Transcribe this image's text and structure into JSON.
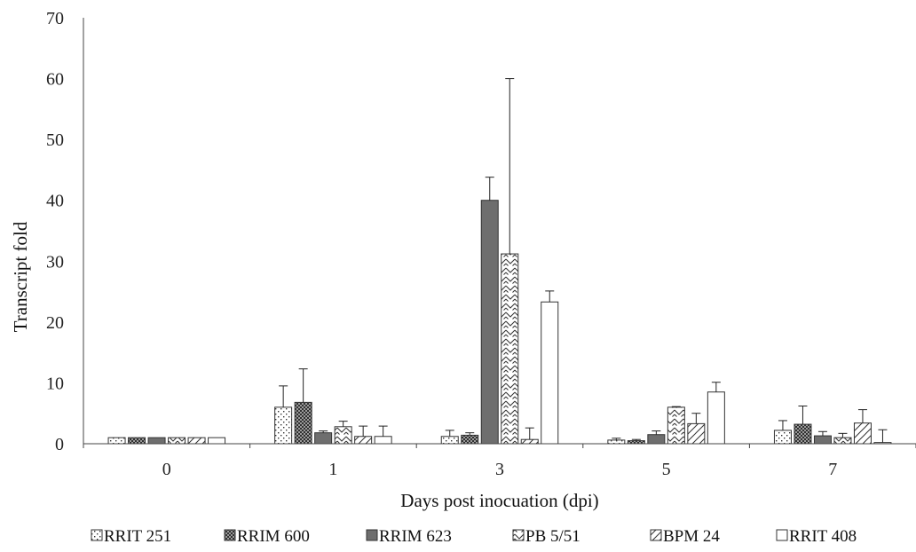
{
  "chart_data": {
    "type": "bar",
    "xlabel": "Days post inocuation (dpi)",
    "ylabel": "Transcript fold",
    "ylim": [
      0,
      70
    ],
    "yticks": [
      "0",
      "10",
      "20",
      "30",
      "40",
      "50",
      "60",
      "70"
    ],
    "categories": [
      "0",
      "1",
      "3",
      "5",
      "7"
    ],
    "grid": false,
    "legend_position": "bottom",
    "error_bars": "upper",
    "series": [
      {
        "name": "RRIT 251",
        "pattern": "dots",
        "values": [
          1.0,
          6.0,
          1.2,
          0.6,
          2.2
        ],
        "errors": [
          0.0,
          3.5,
          1.0,
          0.3,
          1.6
        ]
      },
      {
        "name": "RRIM 600",
        "pattern": "dense-grid",
        "values": [
          1.0,
          6.8,
          1.4,
          0.5,
          3.2
        ],
        "errors": [
          0.0,
          5.5,
          0.4,
          0.2,
          3.0
        ]
      },
      {
        "name": "RRIM 623",
        "pattern": "solid-gray",
        "values": [
          1.0,
          1.8,
          40.0,
          1.5,
          1.3
        ],
        "errors": [
          0.0,
          0.3,
          3.8,
          0.6,
          0.7
        ]
      },
      {
        "name": "PB 5/51",
        "pattern": "zigzag",
        "values": [
          1.0,
          2.8,
          31.2,
          6.0,
          1.0
        ],
        "errors": [
          0.0,
          0.9,
          28.8,
          0.1,
          0.7
        ]
      },
      {
        "name": "BPM 24",
        "pattern": "diagonal",
        "values": [
          1.0,
          1.2,
          0.7,
          3.3,
          3.4
        ],
        "errors": [
          0.0,
          1.7,
          1.9,
          1.7,
          2.2
        ]
      },
      {
        "name": "RRIT 408",
        "pattern": "none",
        "values": [
          1.0,
          1.2,
          23.3,
          8.5,
          0.2
        ],
        "errors": [
          0.0,
          1.7,
          1.8,
          1.6,
          2.1
        ]
      }
    ]
  }
}
